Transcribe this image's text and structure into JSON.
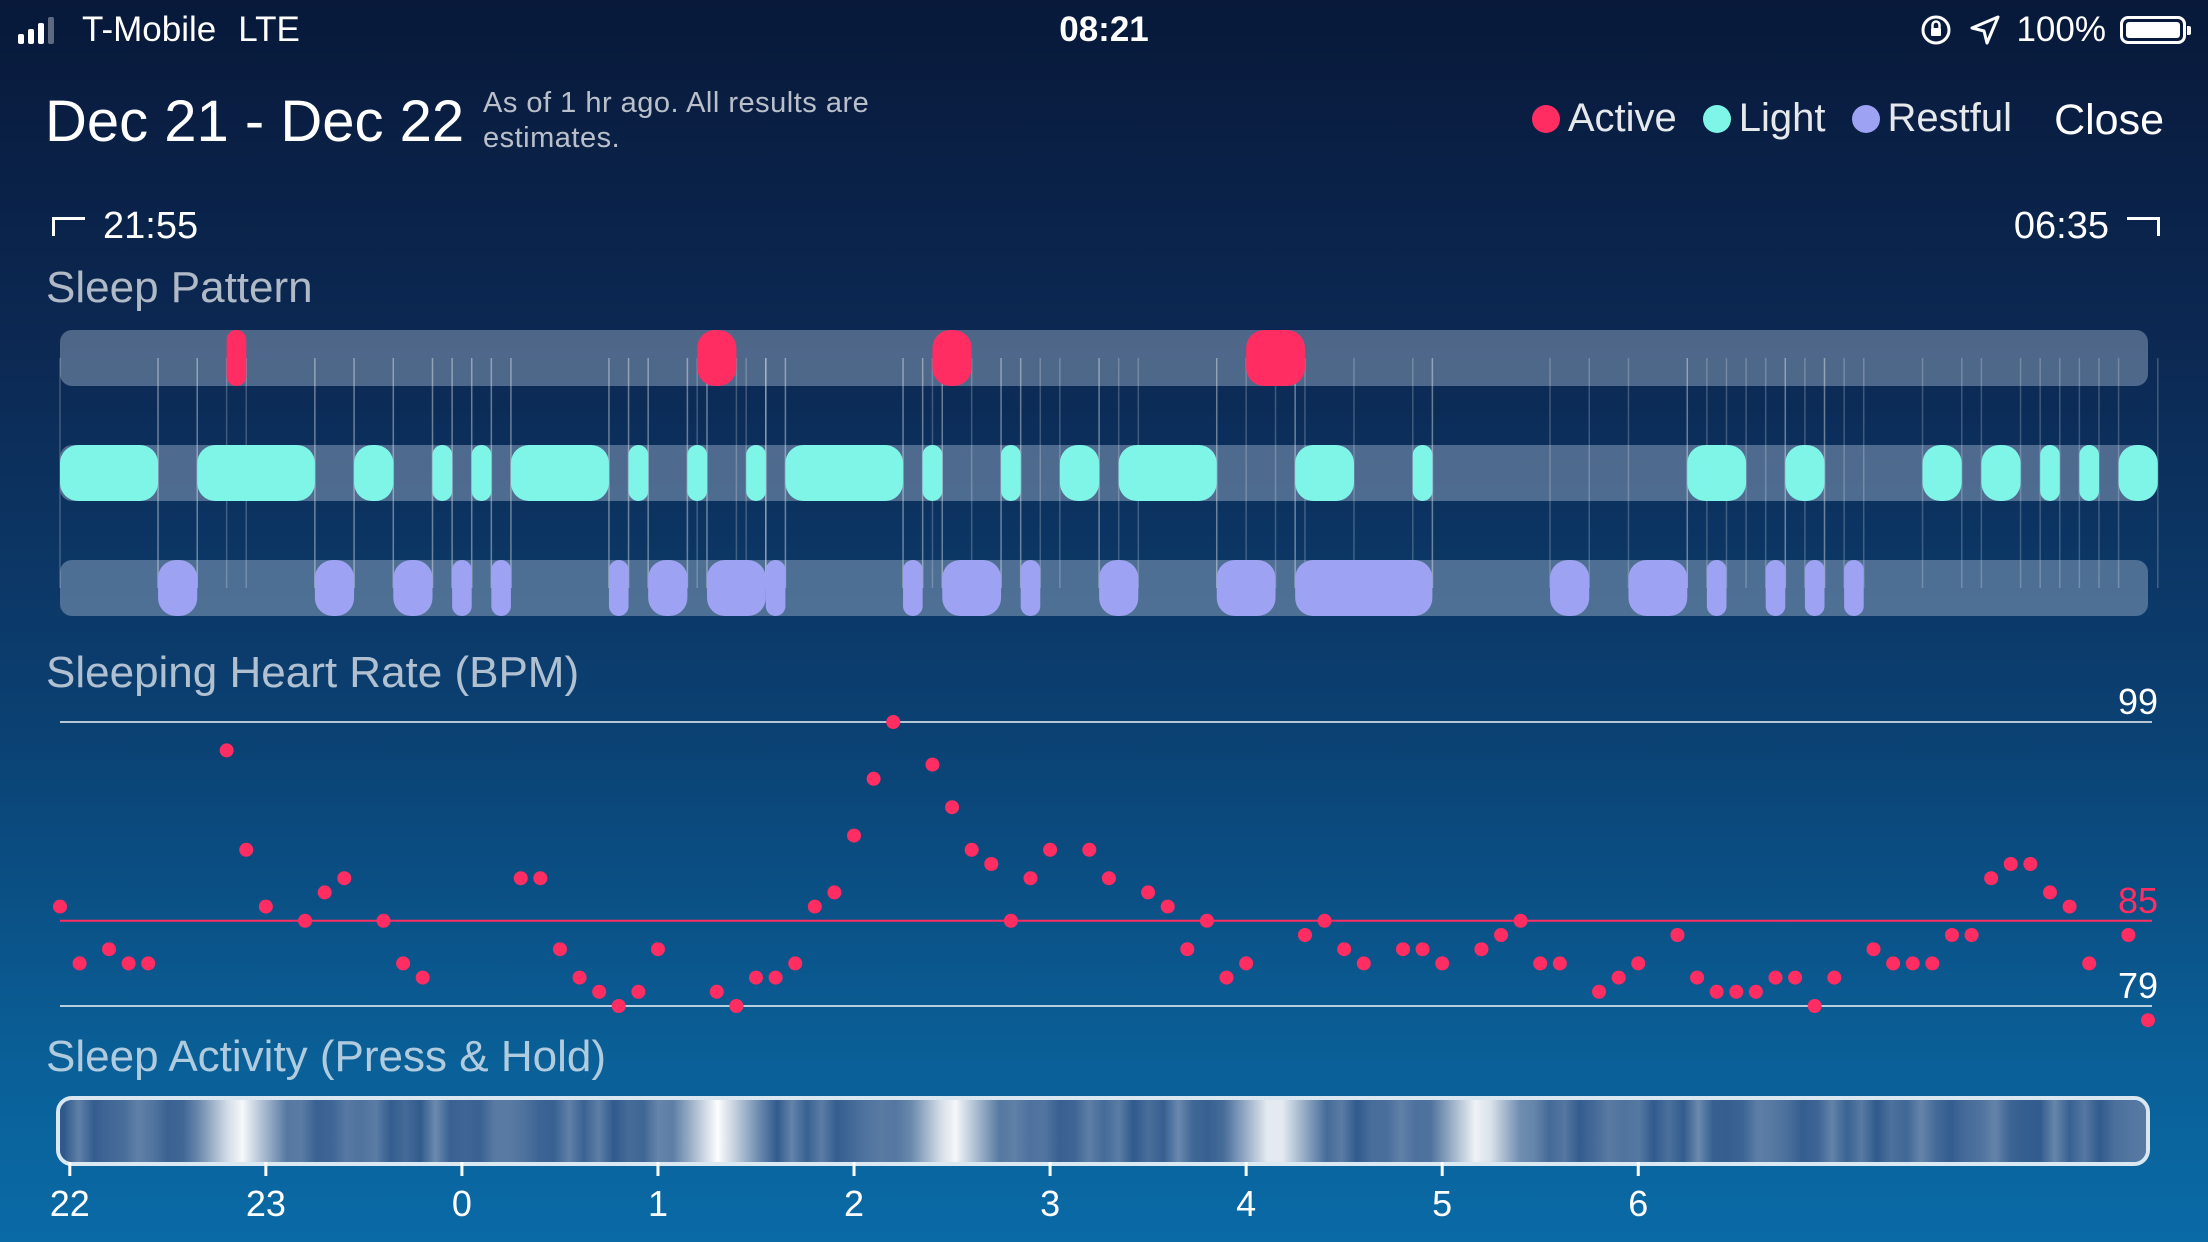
{
  "status_bar": {
    "carrier": "T-Mobile",
    "network": "LTE",
    "time": "08:21",
    "battery": "100%"
  },
  "header": {
    "title": "Dec 21 - Dec 22",
    "note": "As of 1 hr ago. All results are estimates.",
    "close_label": "Close"
  },
  "legend": [
    {
      "label": "Active",
      "color": "#ff2d62"
    },
    {
      "label": "Light",
      "color": "#7ff5e8"
    },
    {
      "label": "Restful",
      "color": "#9da2f2"
    }
  ],
  "range": {
    "start": "21:55",
    "end": "06:35"
  },
  "sections": {
    "sleep_pattern": "Sleep Pattern",
    "heart_rate": "Sleeping Heart Rate (BPM)",
    "activity": "Sleep Activity (Press & Hold)"
  },
  "chart_data": [
    {
      "type": "timeline",
      "title": "Sleep Pattern",
      "time_range": [
        "21:55",
        "06:35"
      ],
      "stages": [
        "Active",
        "Light",
        "Restful"
      ],
      "segments_hours": {
        "Active": [
          [
            22.8,
            22.9
          ],
          [
            25.2,
            25.4
          ],
          [
            26.4,
            26.6
          ],
          [
            28.0,
            28.3
          ]
        ],
        "Light": [
          [
            21.95,
            22.45
          ],
          [
            22.65,
            23.25
          ],
          [
            23.45,
            23.65
          ],
          [
            23.85,
            23.95
          ],
          [
            24.05,
            24.15
          ],
          [
            24.25,
            24.75
          ],
          [
            24.85,
            24.95
          ],
          [
            25.15,
            25.25
          ],
          [
            25.45,
            25.55
          ],
          [
            25.65,
            26.25
          ],
          [
            26.35,
            26.45
          ],
          [
            26.75,
            26.85
          ],
          [
            27.05,
            27.25
          ],
          [
            27.35,
            27.85
          ],
          [
            28.25,
            28.55
          ],
          [
            28.85,
            28.95
          ],
          [
            30.25,
            30.55
          ],
          [
            30.75,
            30.95
          ],
          [
            31.45,
            31.65
          ],
          [
            31.75,
            31.95
          ],
          [
            32.05,
            32.15
          ],
          [
            32.25,
            32.35
          ],
          [
            32.45,
            32.65
          ]
        ],
        "Restful": [
          [
            22.45,
            22.65
          ],
          [
            23.25,
            23.45
          ],
          [
            23.65,
            23.85
          ],
          [
            23.95,
            24.05
          ],
          [
            24.15,
            24.25
          ],
          [
            24.75,
            24.85
          ],
          [
            24.95,
            25.15
          ],
          [
            25.25,
            25.55
          ],
          [
            25.55,
            25.65
          ],
          [
            26.25,
            26.35
          ],
          [
            26.45,
            26.75
          ],
          [
            26.85,
            26.95
          ],
          [
            27.25,
            27.45
          ],
          [
            27.85,
            28.15
          ],
          [
            28.25,
            28.95
          ],
          [
            29.55,
            29.75
          ],
          [
            29.95,
            30.25
          ],
          [
            30.35,
            30.45
          ],
          [
            30.65,
            30.75
          ],
          [
            30.85,
            30.95
          ],
          [
            31.05,
            31.15
          ]
        ]
      }
    },
    {
      "type": "scatter",
      "title": "Sleeping Heart Rate (BPM)",
      "ylim": [
        79,
        99
      ],
      "y_ticks": [
        99,
        79
      ],
      "reference_line": 85,
      "x_ticks": [
        "22",
        "23",
        "0",
        "1",
        "2",
        "3",
        "4",
        "5",
        "6"
      ],
      "x": [
        21.95,
        22.05,
        22.2,
        22.3,
        22.4,
        22.8,
        22.9,
        23.0,
        23.2,
        23.3,
        23.4,
        23.6,
        23.7,
        23.8,
        24.3,
        24.4,
        24.5,
        24.6,
        24.7,
        24.8,
        24.9,
        25.0,
        25.3,
        25.4,
        25.5,
        25.6,
        25.7,
        25.8,
        25.9,
        26.0,
        26.1,
        26.2,
        26.4,
        26.5,
        26.6,
        26.7,
        26.8,
        26.9,
        27.0,
        27.2,
        27.3,
        27.5,
        27.6,
        27.7,
        27.8,
        27.9,
        28.0,
        28.3,
        28.4,
        28.5,
        28.6,
        28.8,
        28.9,
        29.0,
        29.2,
        29.3,
        29.4,
        29.5,
        29.6,
        29.8,
        29.9,
        30.0,
        30.2,
        30.3,
        30.4,
        30.5,
        30.6,
        30.7,
        30.8,
        30.9,
        31.0,
        31.2,
        31.3,
        31.4,
        31.5,
        31.6,
        31.7,
        31.8,
        31.9,
        32.0,
        32.1,
        32.2,
        32.3,
        32.5,
        32.6
      ],
      "values": [
        86,
        82,
        83,
        82,
        82,
        97,
        90,
        86,
        85,
        87,
        88,
        85,
        82,
        81,
        88,
        88,
        83,
        81,
        80,
        79,
        80,
        83,
        80,
        79,
        81,
        81,
        82,
        86,
        87,
        91,
        95,
        99,
        96,
        93,
        90,
        89,
        85,
        88,
        90,
        90,
        88,
        87,
        86,
        83,
        85,
        81,
        82,
        84,
        85,
        83,
        82,
        83,
        83,
        82,
        83,
        84,
        85,
        82,
        82,
        80,
        81,
        82,
        84,
        81,
        80,
        80,
        80,
        81,
        81,
        79,
        81,
        83,
        82,
        82,
        82,
        84,
        84,
        88,
        89,
        89,
        87,
        86,
        82,
        84,
        78
      ]
    },
    {
      "type": "heatmap",
      "title": "Sleep Activity (Press & Hold)",
      "x_ticks": [
        "22",
        "23",
        "0",
        "1",
        "2",
        "3",
        "4",
        "5",
        "6"
      ],
      "intensity_peaks_hours": [
        22.85,
        25.3,
        26.5,
        28.15,
        29.2
      ]
    }
  ]
}
